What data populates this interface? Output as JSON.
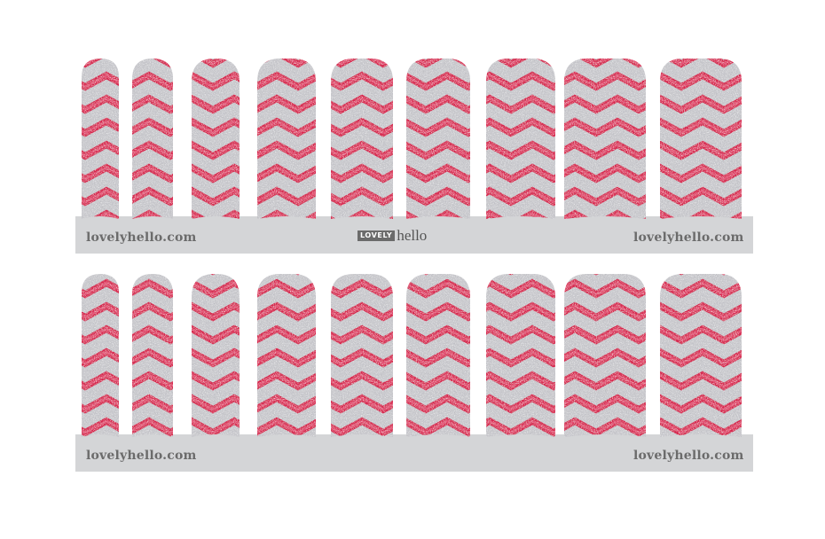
{
  "sheet": {
    "colors": {
      "background": "#ffffff",
      "backing_strip": "#d4d5d7",
      "label_text": "#6b6b6b",
      "glitter_pink": "#d8284f",
      "glitter_pink_light": "#ee6a8a",
      "glitter_silver": "#c9c9cd",
      "glitter_silver_light": "#f2f2f4"
    },
    "pattern": "chevron-glitter",
    "rows": [
      {
        "strip_left_text": "lovelyhello.com",
        "strip_center_brand": {
          "badge": "LOVELY",
          "word": "hello"
        },
        "strip_right_text": "lovelyhello.com",
        "nail_count": 9
      },
      {
        "strip_left_text": "lovelyhello.com",
        "strip_right_text": "lovelyhello.com",
        "nail_count": 9
      }
    ]
  }
}
